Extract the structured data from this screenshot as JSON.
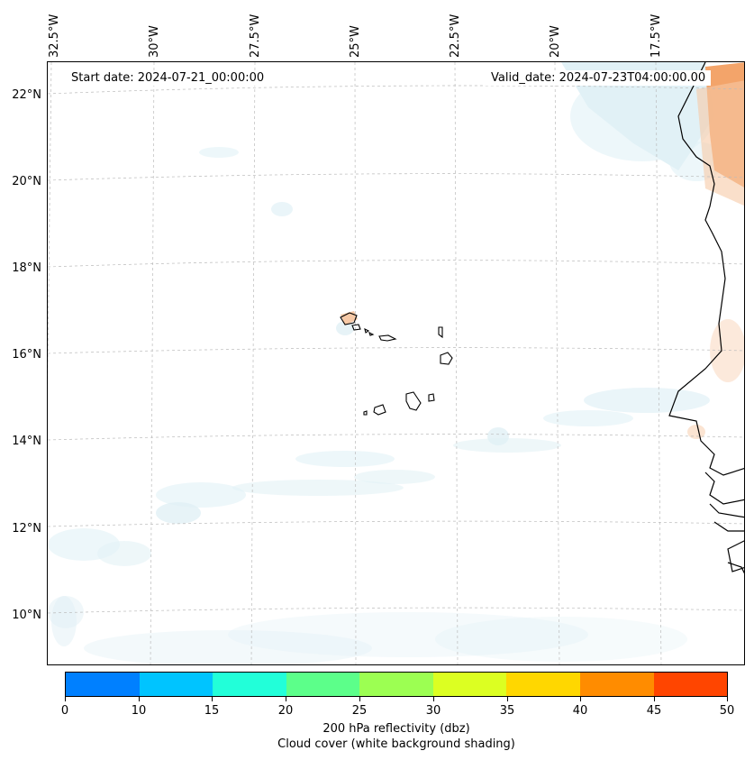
{
  "map": {
    "start_date": "Start date: 2024-07-21_00:00:00",
    "valid_date": "Valid_date: 2024-07-23T04:00:00.00",
    "lon_labels": [
      "32.5°W",
      "30°W",
      "27.5°W",
      "25°W",
      "22.5°W",
      "20°W",
      "17.5°W"
    ],
    "lat_labels": [
      "22°N",
      "20°N",
      "18°N",
      "16°N",
      "14°N",
      "12°N",
      "10°N"
    ],
    "features": [
      "coastline",
      "cape-verde-islands",
      "gridlines",
      "cloud-cover-shading",
      "reflectivity-shading"
    ],
    "colors": {
      "cloud": "#cfe8f0",
      "reflectivity_low": "#f7c9a6",
      "reflectivity_high": "#f29a5a"
    }
  },
  "colorbar": {
    "ticks": [
      "0",
      "10",
      "15",
      "20",
      "25",
      "30",
      "35",
      "40",
      "45",
      "50"
    ],
    "colors": [
      "#0080ff",
      "#00c4ff",
      "#22ffd9",
      "#5cff8a",
      "#9cff52",
      "#dcff22",
      "#ffd700",
      "#ff8c00",
      "#ff4500"
    ],
    "title_line1": "200 hPa reflectivity (dbz)",
    "title_line2": "Cloud cover (white background shading)"
  }
}
